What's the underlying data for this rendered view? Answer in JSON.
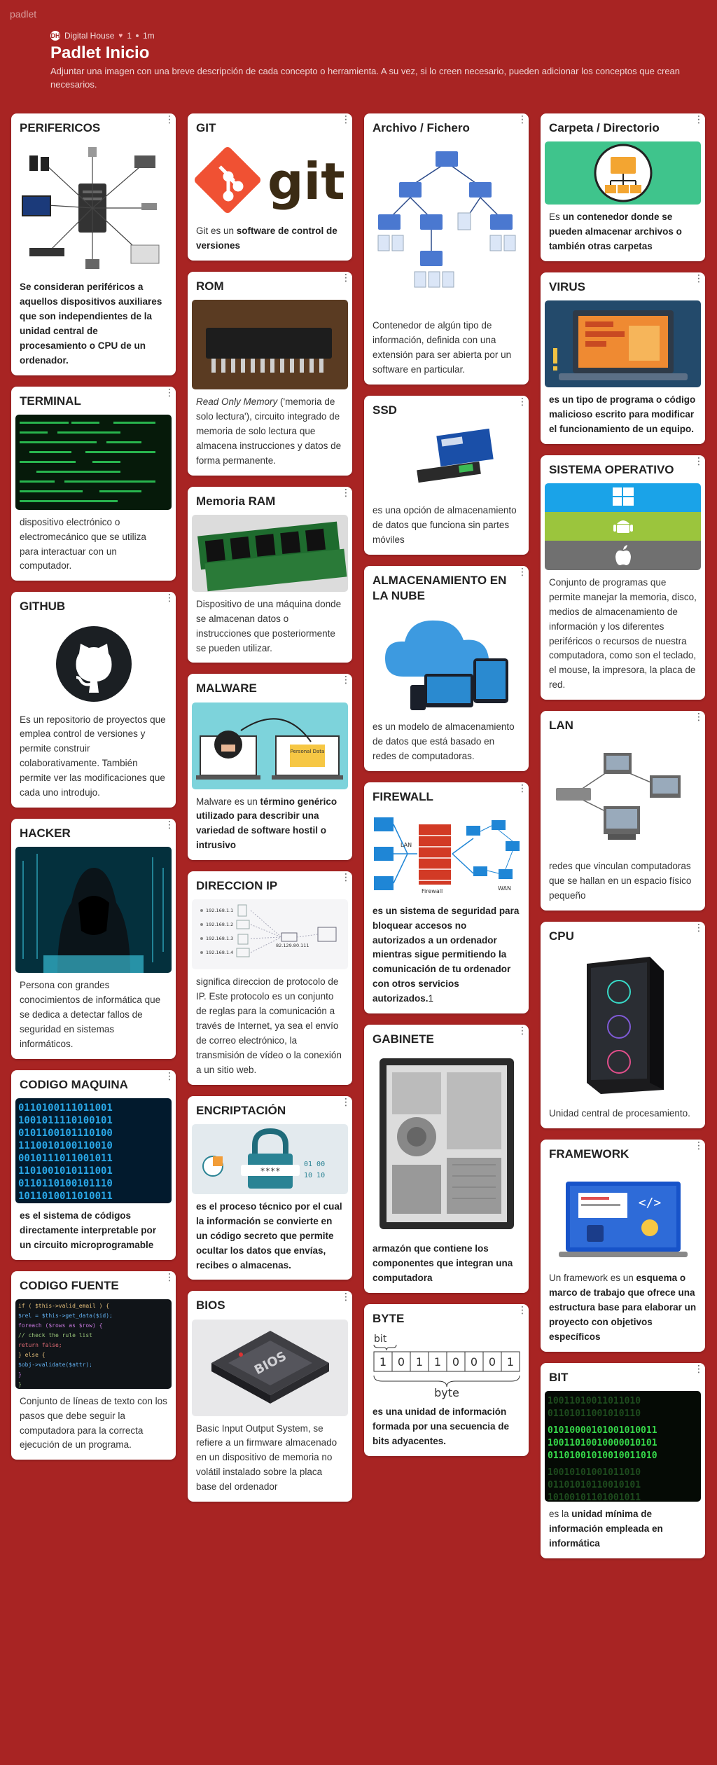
{
  "app": {
    "brand": "padlet"
  },
  "header": {
    "author": "Digital House",
    "likes": "1",
    "time": "1m",
    "title": "Padlet Inicio",
    "subtitle": "Adjuntar una imagen con una breve descripción de cada concepto o herramienta. A su vez, si lo creen necesario, pueden adicionar los conceptos que crean necesarios."
  },
  "cards": {
    "perifericos": {
      "title": "PERIFERICOS",
      "text": "Se consideran periféricos a aquellos dispositivos auxiliares que son independientes de la unidad central de procesamiento o CPU de un ordenador."
    },
    "terminal": {
      "title": "TERMINAL",
      "text": "dispositivo electrónico o electromecánico que se utiliza para interactuar con un computador."
    },
    "github": {
      "title": "GITHUB",
      "text": "Es un repositorio de proyectos que emplea control de versiones y permite construir colaborativamente. También permite ver las modificaciones que cada uno introdujo."
    },
    "hacker": {
      "title": "HACKER",
      "text": "Persona con grandes conocimientos de informática que se dedica a detectar fallos de seguridad en sistemas informáticos."
    },
    "codigo_maquina": {
      "title": "CODIGO MAQUINA",
      "text": "es el sistema de códigos directamente interpretable por un circuito microprogramable"
    },
    "codigo_fuente": {
      "title": "CODIGO FUENTE",
      "text": "Conjunto de líneas de texto con los pasos que debe seguir la computadora para la correcta ejecución de un programa."
    },
    "git": {
      "title": "GIT",
      "text_pre": "Git es un ",
      "text_bold": "software de control de versiones",
      "logo_text": "git"
    },
    "rom": {
      "title": "ROM",
      "text_italic": "Read Only Memory",
      "text_rest": " ('memoria de solo lectura'), circuito integrado de memoria de solo lectura que almacena instrucciones y datos de forma permanente."
    },
    "ram": {
      "title": "Memoria RAM",
      "text": "Dispositivo de una máquina donde se almacenan datos o instrucciones que posteriormente se pueden utilizar."
    },
    "malware": {
      "title": "MALWARE",
      "text_pre": "Malware es un ",
      "text_bold": "término genérico utilizado para describir una variedad de software hostil o intrusivo",
      "image_label": "Personal Data"
    },
    "ip": {
      "title": "DIRECCION IP",
      "text": "significa direccion de protocolo de IP. Este protocolo es un conjunto de reglas para la comunicación a través de Internet, ya sea el envío de correo electrónico, la transmisión de vídeo o la conexión a un sitio web.",
      "ips": [
        "192.168.1.1",
        "192.168.1.2",
        "192.168.1.3",
        "192.168.1.4"
      ],
      "router_ip": "82.129.80.111"
    },
    "encriptacion": {
      "title": "ENCRIPTACIÓN",
      "text": "es el proceso técnico por el cual la información se convierte en un código secreto que permite ocultar los datos que envías, recibes o almacenas.",
      "image_code": "****"
    },
    "bios": {
      "title": "BIOS",
      "text": "Basic Input Output System, se refiere a un firmware almacenado en un dispositivo de memoria no volátil instalado sobre la placa base del ordenador",
      "chip_label": "BIOS"
    },
    "archivo": {
      "title": "Archivo / Fichero",
      "text": "Contenedor de algún tipo de información, definida con una extensión para ser abierta por un software en particular."
    },
    "ssd": {
      "title": "SSD",
      "text": "es una opción de almacenamiento de datos que funciona sin partes móviles"
    },
    "nube": {
      "title": "ALMACENAMIENTO EN LA NUBE",
      "text": "es un modelo de almacenamiento de datos que está basado en redes de computadoras."
    },
    "firewall": {
      "title": "FIREWALL",
      "text": "es un sistema de seguridad para bloquear accesos no autorizados a un ordenador mientras sigue permitiendo la comunicación de tu ordenador con otros servicios autorizados.",
      "text_suffix": "1",
      "lan_label": "LAN",
      "wan_label": "WAN",
      "firewall_label": "Firewall"
    },
    "gabinete": {
      "title": "GABINETE",
      "text": "armazón que contiene los componentes que integran una computadora"
    },
    "byte": {
      "title": "BYTE",
      "text": "es una unidad de información formada por una secuencia de bits adyacentes.",
      "bit_label": "bit",
      "byte_label": "byte",
      "bits": [
        "1",
        "0",
        "1",
        "1",
        "0",
        "0",
        "0",
        "1"
      ]
    },
    "carpeta": {
      "title": "Carpeta / Directorio",
      "text_pre": "Es ",
      "text_bold": "un contenedor donde se pueden almacenar archivos o también otras carpetas"
    },
    "virus": {
      "title": "VIRUS",
      "text": "es un tipo de programa o código malicioso escrito para modificar el funcionamiento de un equipo."
    },
    "so": {
      "title": "SISTEMA OPERATIVO",
      "text": "Conjunto de programas que permite manejar la memoria, disco, medios de almacenamiento de información y los diferentes periféricos o recursos de nuestra computadora, como son el teclado, el mouse, la impresora, la placa de red."
    },
    "lan": {
      "title": "LAN",
      "text": "redes que vinculan computadoras que se hallan en un espacio físico pequeño"
    },
    "cpu": {
      "title": "CPU",
      "text": "Unidad central de procesamiento."
    },
    "framework": {
      "title": "FRAMEWORK",
      "text_pre": "Un framework es un ",
      "text_bold": "esquema o marco de trabajo que ofrece una estructura base para elaborar un proyecto con objetivos específicos"
    },
    "bit": {
      "title": "BIT",
      "text_pre": "es la ",
      "text_bold": "unidad mínima de información empleada en informática"
    }
  },
  "colors": {
    "background": "#a82423",
    "card": "#ffffff"
  },
  "icons": {
    "card_menu": "kebab-icon",
    "like": "heart-icon"
  }
}
